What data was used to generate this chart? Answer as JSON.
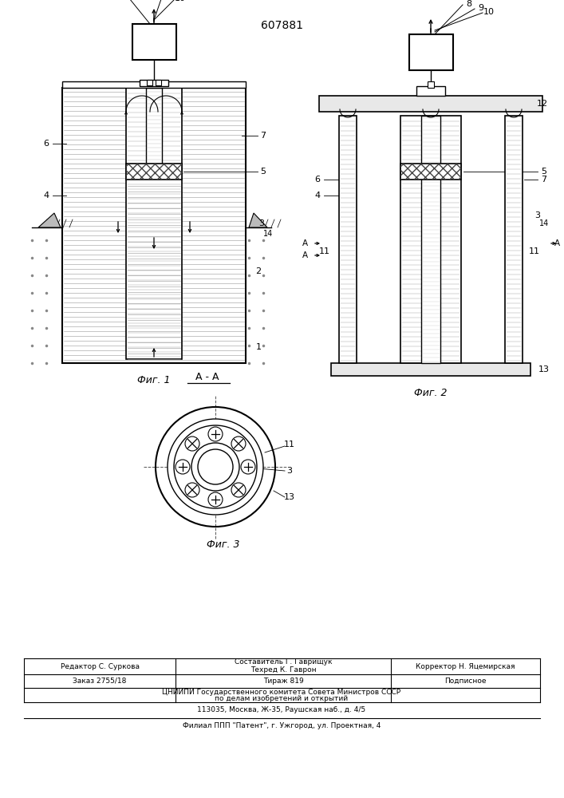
{
  "patent_number": "607881",
  "fig1_caption": "Фиг. 1",
  "fig2_caption": "Фиг. 2",
  "fig3_caption": "Фиг. 3",
  "fig3_label": "А-А",
  "bg_color": "#ffffff",
  "line_color": "#000000",
  "footer_col1": "Редактор С. Суркова",
  "footer_col2a": "Составитель Г. Гаврищук",
  "footer_col2b": "Техред К. Гаврон",
  "footer_col3": "Корректор Н. Яцемирская",
  "footer_order": "Заказ 2755/18",
  "footer_tirazh": "Тираж 819",
  "footer_podp": "Подписное",
  "footer_line1": "ЦНИИПИ Государственного комитета Совета Министров СССР",
  "footer_line2": "по делам изобретений и открытий",
  "footer_line3": "113035, Москва, Ж-35, Раушская наб., д. 4/5",
  "footer_line4": "Филиал ППП \"Патент\", г. Ужгород, ул. Проектная, 4"
}
